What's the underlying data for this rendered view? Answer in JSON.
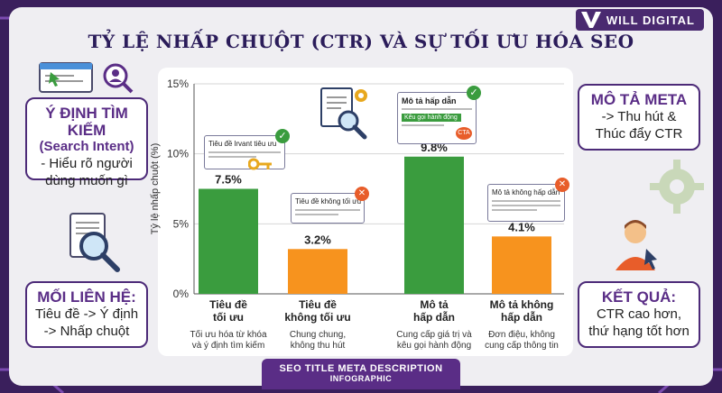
{
  "brand": {
    "name": "WILL DIGITAL"
  },
  "title": "TỶ LỆ NHẤP CHUỘT (CTR) VÀ SỰ TỐI ƯU HÓA SEO",
  "cards": {
    "intent": {
      "head": "Ý ĐỊNH TÌM KIẾM",
      "sub": "(Search Intent)",
      "body1": "- Hiểu rõ người",
      "body2": "dùng muốn gì"
    },
    "relation": {
      "head": "MỐI LIÊN HỆ:",
      "body1": "Tiêu đề -> Ý định",
      "body2": "-> Nhấp chuột"
    },
    "meta": {
      "head": "MÔ TẢ META",
      "body1": "-> Thu hút &",
      "body2": "Thúc đẩy CTR"
    },
    "result": {
      "head": "KẾT QUẢ:",
      "body1": "CTR cao hơn,",
      "body2": "thứ hạng tốt hơn"
    }
  },
  "snippets": {
    "s1": "Tiêu đề lrvant tiêu ưu",
    "s2": "Tiêu đề không tối ưu",
    "s3_title": "Mô tả hấp dẫn",
    "s3_cta_text": "Kêu gọi hành động",
    "s3_badge": "CTA",
    "s4": "Mô tả không hấp dẫn"
  },
  "footer": {
    "line1": "SEO TITLE META DESCRIPTION",
    "line2": "INFOGRAPHIC"
  },
  "colors": {
    "green": "#3a9c3e",
    "orange": "#f7931e",
    "purple": "#5a2d86",
    "accent_blue": "#4a90d9"
  },
  "chart_data": {
    "type": "bar",
    "title": "",
    "ylabel": "Tỷ lệ nhấp chuột (%)",
    "xlabel": "",
    "ylim": [
      0,
      15
    ],
    "yticks": [
      0,
      5,
      10,
      15
    ],
    "ytick_labels": [
      "0%",
      "5%",
      "10%",
      "15%"
    ],
    "grid": true,
    "categories": [
      {
        "name1": "Tiêu đề",
        "name2": "tối ưu",
        "desc1": "Tối ưu hóa từ khóa",
        "desc2": "và ý định tìm kiếm"
      },
      {
        "name1": "Tiêu đề",
        "name2": "không tối ưu",
        "desc1": "Chung chung,",
        "desc2": "không thu hút"
      },
      {
        "name1": "Mô tả",
        "name2": "hấp dẫn",
        "desc1": "Cung cấp giá trị và",
        "desc2": "kêu gọi hành động"
      },
      {
        "name1": "Mô tả không",
        "name2": "hấp dẫn",
        "desc1": "Đơn điệu, không",
        "desc2": "cung cấp thông tin"
      }
    ],
    "values": [
      7.5,
      3.2,
      9.8,
      4.1
    ],
    "value_labels": [
      "7.5%",
      "3.2%",
      "9.8%",
      "4.1%"
    ],
    "bar_colors": [
      "#3a9c3e",
      "#f7931e",
      "#3a9c3e",
      "#f7931e"
    ]
  }
}
